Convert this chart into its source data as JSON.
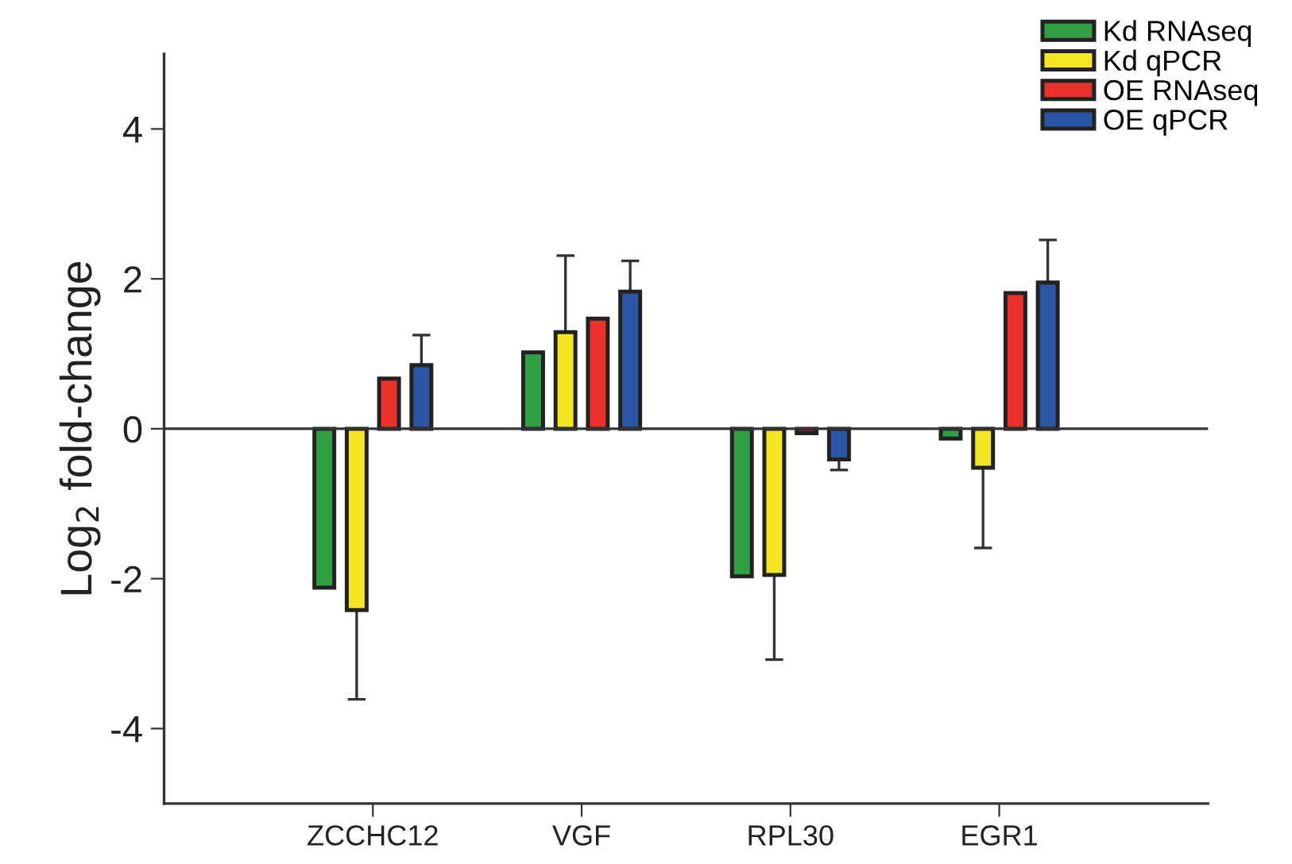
{
  "chart_data": {
    "type": "bar",
    "ylabel": "Log$_{2}$ fold-change",
    "categories": [
      "ZCCHC12",
      "VGF",
      "RPL30",
      "EGR1"
    ],
    "series": [
      {
        "name": "Kd RNAseq",
        "color": "#2fa043",
        "values": [
          -2.12,
          1.02,
          -1.97,
          -0.13
        ]
      },
      {
        "name": "Kd qPCR",
        "color": "#f5e623",
        "values": [
          -2.42,
          1.29,
          -1.95,
          -0.52
        ],
        "errors": [
          [
            -3.61,
            -2.42
          ],
          [
            1.29,
            2.31
          ],
          [
            -3.08,
            -1.95
          ],
          [
            -1.59,
            -0.52
          ]
        ]
      },
      {
        "name": "OE RNAseq",
        "color": "#ea312b",
        "values": [
          0.67,
          1.47,
          -0.06,
          1.81
        ]
      },
      {
        "name": "OE qPCR",
        "color": "#2c55a4",
        "values": [
          0.85,
          1.83,
          -0.41,
          1.95
        ],
        "errors": [
          [
            0.85,
            1.25
          ],
          [
            1.83,
            2.24
          ],
          [
            -0.55,
            -0.41
          ],
          [
            1.95,
            2.52
          ]
        ]
      }
    ],
    "ylim": [
      -5,
      5
    ],
    "yticks": [
      {
        "value": -4,
        "label": "-4"
      },
      {
        "value": -2,
        "label": "-2"
      },
      0,
      2,
      4
    ],
    "ref_lines": [
      {
        "axis": "y",
        "value": 0
      }
    ],
    "legend": "top right",
    "grid": false
  }
}
